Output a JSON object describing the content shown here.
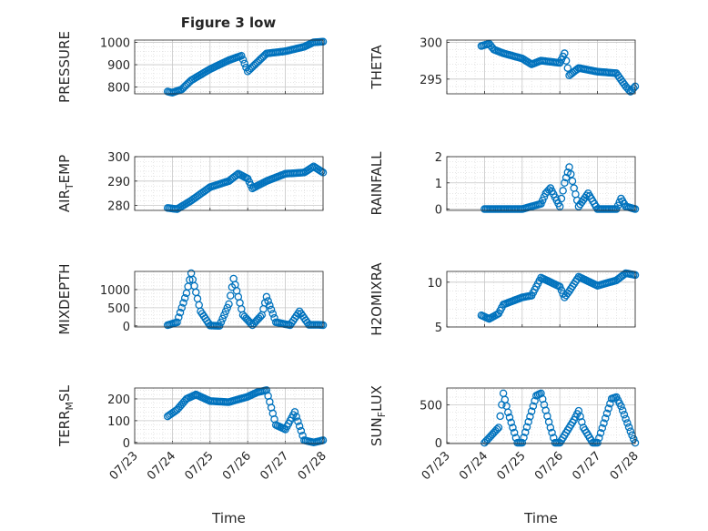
{
  "figure": {
    "title": "Figure 3 low",
    "xlabel": "Time"
  },
  "chart_data": [
    {
      "type": "scatter",
      "ylabel": "PRESSURE",
      "yticks": [
        800,
        900,
        1000
      ],
      "ylim": [
        770,
        1010
      ],
      "x": [
        "07/23 21:00",
        "07/24 00:00",
        "07/24 06:00",
        "07/24 12:00",
        "07/25 00:00",
        "07/25 12:00",
        "07/25 20:00",
        "07/26 00:00",
        "07/26 06:00",
        "07/26 12:00",
        "07/27 00:00",
        "07/27 12:00",
        "07/27 18:00",
        "07/28 00:00"
      ],
      "y": [
        780,
        775,
        790,
        830,
        880,
        920,
        940,
        870,
        910,
        950,
        960,
        980,
        1000,
        1003
      ]
    },
    {
      "type": "scatter",
      "ylabel": "THETA",
      "yticks": [
        295,
        300
      ],
      "ylim": [
        293,
        300.3
      ],
      "x": [
        "07/23 22:00",
        "07/24 03:00",
        "07/24 06:00",
        "07/24 12:00",
        "07/25 00:00",
        "07/25 06:00",
        "07/25 12:00",
        "07/26 00:00",
        "07/26 03:00",
        "07/26 06:00",
        "07/26 12:00",
        "07/27 00:00",
        "07/27 12:00",
        "07/27 18:00",
        "07/27 21:00",
        "07/28 00:00"
      ],
      "y": [
        299.5,
        299.8,
        299.0,
        298.5,
        297.8,
        297.0,
        297.5,
        297.2,
        298.5,
        295.5,
        296.5,
        296.0,
        295.8,
        294.0,
        293.3,
        294.0
      ]
    },
    {
      "type": "scatter",
      "ylabel": "AIR_T_EMP",
      "yticks": [
        280,
        290,
        300
      ],
      "ylim": [
        278,
        300
      ],
      "x": [
        "07/23 21:00",
        "07/24 03:00",
        "07/24 12:00",
        "07/25 00:00",
        "07/25 12:00",
        "07/25 18:00",
        "07/26 00:00",
        "07/26 03:00",
        "07/26 12:00",
        "07/27 00:00",
        "07/27 12:00",
        "07/27 18:00",
        "07/28 00:00"
      ],
      "y": [
        279,
        278.5,
        282,
        287.5,
        290,
        293,
        291,
        287,
        290,
        293,
        293.5,
        296,
        293.5
      ]
    },
    {
      "type": "scatter",
      "ylabel": "RAINFALL",
      "yticks": [
        0,
        1,
        2
      ],
      "ylim": [
        -0.05,
        2
      ],
      "x": [
        "07/24 00:00",
        "07/25 00:00",
        "07/25 12:00",
        "07/25 15:00",
        "07/25 18:00",
        "07/26 00:00",
        "07/26 03:00",
        "07/26 06:00",
        "07/26 09:00",
        "07/26 12:00",
        "07/26 18:00",
        "07/27 00:00",
        "07/27 12:00",
        "07/27 15:00",
        "07/27 18:00",
        "07/28 00:00"
      ],
      "y": [
        0,
        0,
        0.2,
        0.6,
        0.8,
        0.1,
        1.0,
        1.6,
        0.8,
        0.1,
        0.6,
        0,
        0,
        0.4,
        0.1,
        0
      ]
    },
    {
      "type": "scatter",
      "ylabel": "MIXDEPTH",
      "yticks": [
        0,
        500,
        1000
      ],
      "ylim": [
        -30,
        1500
      ],
      "x": [
        "07/23 21:00",
        "07/24 03:00",
        "07/24 09:00",
        "07/24 12:00",
        "07/24 18:00",
        "07/25 00:00",
        "07/25 06:00",
        "07/25 12:00",
        "07/25 15:00",
        "07/25 21:00",
        "07/26 03:00",
        "07/26 09:00",
        "07/26 12:00",
        "07/26 18:00",
        "07/27 03:00",
        "07/27 09:00",
        "07/27 15:00",
        "07/27 21:00",
        "07/28 00:00"
      ],
      "y": [
        20,
        100,
        900,
        1450,
        400,
        10,
        0,
        600,
        1300,
        300,
        20,
        300,
        800,
        100,
        20,
        400,
        30,
        30,
        20
      ]
    },
    {
      "type": "scatter",
      "ylabel": "H2OMIXRA",
      "yticks": [
        5,
        10
      ],
      "ylim": [
        5,
        11.2
      ],
      "x": [
        "07/23 22:00",
        "07/24 03:00",
        "07/24 09:00",
        "07/24 12:00",
        "07/25 00:00",
        "07/25 06:00",
        "07/25 12:00",
        "07/26 00:00",
        "07/26 03:00",
        "07/26 06:00",
        "07/26 12:00",
        "07/27 00:00",
        "07/27 12:00",
        "07/27 18:00",
        "07/28 00:00"
      ],
      "y": [
        6.3,
        5.9,
        6.5,
        7.5,
        8.3,
        8.5,
        10.5,
        9.5,
        8.3,
        9.0,
        10.6,
        9.6,
        10.2,
        11.0,
        10.8
      ]
    },
    {
      "type": "scatter",
      "ylabel": "TERR_M_SL",
      "yticks": [
        0,
        100,
        200
      ],
      "ylim": [
        -5,
        250
      ],
      "x": [
        "07/23 21:00",
        "07/24 03:00",
        "07/24 09:00",
        "07/24 15:00",
        "07/25 00:00",
        "07/25 12:00",
        "07/26 00:00",
        "07/26 06:00",
        "07/26 12:00",
        "07/26 18:00",
        "07/27 00:00",
        "07/27 06:00",
        "07/27 12:00",
        "07/27 18:00",
        "07/28 00:00"
      ],
      "y": [
        120,
        150,
        200,
        220,
        190,
        185,
        210,
        230,
        240,
        80,
        60,
        140,
        10,
        0,
        10
      ]
    },
    {
      "type": "scatter",
      "ylabel": "SUN_F_LUX",
      "yticks": [
        0,
        500
      ],
      "ylim": [
        -10,
        720
      ],
      "x": [
        "07/24 00:00",
        "07/24 09:00",
        "07/24 12:00",
        "07/24 15:00",
        "07/24 21:00",
        "07/25 00:00",
        "07/25 09:00",
        "07/25 12:00",
        "07/25 18:00",
        "07/25 21:00",
        "07/26 00:00",
        "07/26 09:00",
        "07/26 12:00",
        "07/26 15:00",
        "07/26 21:00",
        "07/27 00:00",
        "07/27 09:00",
        "07/27 12:00",
        "07/27 15:00",
        "07/27 21:00",
        "07/28 00:00"
      ],
      "y": [
        0,
        200,
        650,
        400,
        0,
        0,
        620,
        650,
        200,
        0,
        0,
        300,
        420,
        200,
        0,
        0,
        580,
        600,
        480,
        150,
        0
      ]
    }
  ],
  "xaxis": {
    "ticks": [
      "07/23",
      "07/24",
      "07/25",
      "07/26",
      "07/27",
      "07/28"
    ],
    "range": [
      "07/23 00:00",
      "07/28 00:00"
    ]
  },
  "style": {
    "marker_color": "#0072BD",
    "grid": "on",
    "box": "on"
  }
}
